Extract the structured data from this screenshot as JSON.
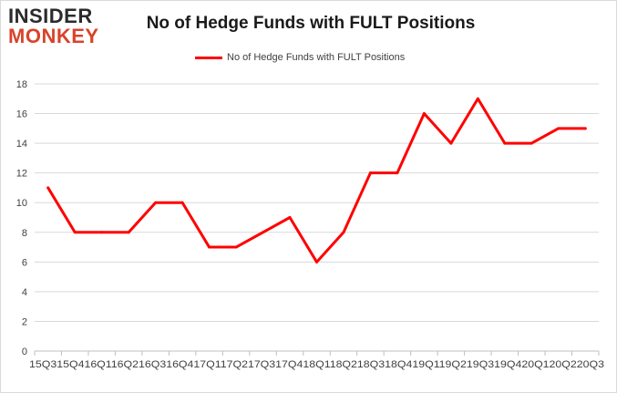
{
  "logo": {
    "line1": "INSIDER",
    "line2": "MONKEY"
  },
  "colors": {
    "series": "#ff0000",
    "grid": "#d9d9d9",
    "logo_dark": "#2b2b2b",
    "logo_accent": "#d9432b"
  },
  "chart_data": {
    "type": "line",
    "title": "No of Hedge Funds with FULT Positions",
    "xlabel": "",
    "ylabel": "",
    "legend_position": "top-center",
    "grid": true,
    "ylim": [
      0,
      18
    ],
    "yticks": [
      0,
      2,
      4,
      6,
      8,
      10,
      12,
      14,
      16,
      18
    ],
    "x_tick_text": "15Q315Q416Q116Q216Q316Q417Q117Q217Q317Q418Q118Q218Q318Q419Q119Q219Q319Q420Q120Q220Q3",
    "categories": [
      "15Q3",
      "15Q4",
      "16Q1",
      "16Q2",
      "16Q3",
      "16Q4",
      "17Q1",
      "17Q2",
      "17Q3",
      "17Q4",
      "18Q1",
      "18Q2",
      "18Q3",
      "18Q4",
      "19Q1",
      "19Q2",
      "19Q3",
      "19Q4",
      "20Q1",
      "20Q2",
      "20Q3"
    ],
    "series": [
      {
        "name": "No of Hedge Funds with FULT Positions",
        "values": [
          11,
          8,
          8,
          8,
          10,
          10,
          7,
          7,
          8,
          9,
          6,
          8,
          12,
          12,
          16,
          14,
          17,
          14,
          14,
          15,
          15
        ]
      }
    ]
  }
}
